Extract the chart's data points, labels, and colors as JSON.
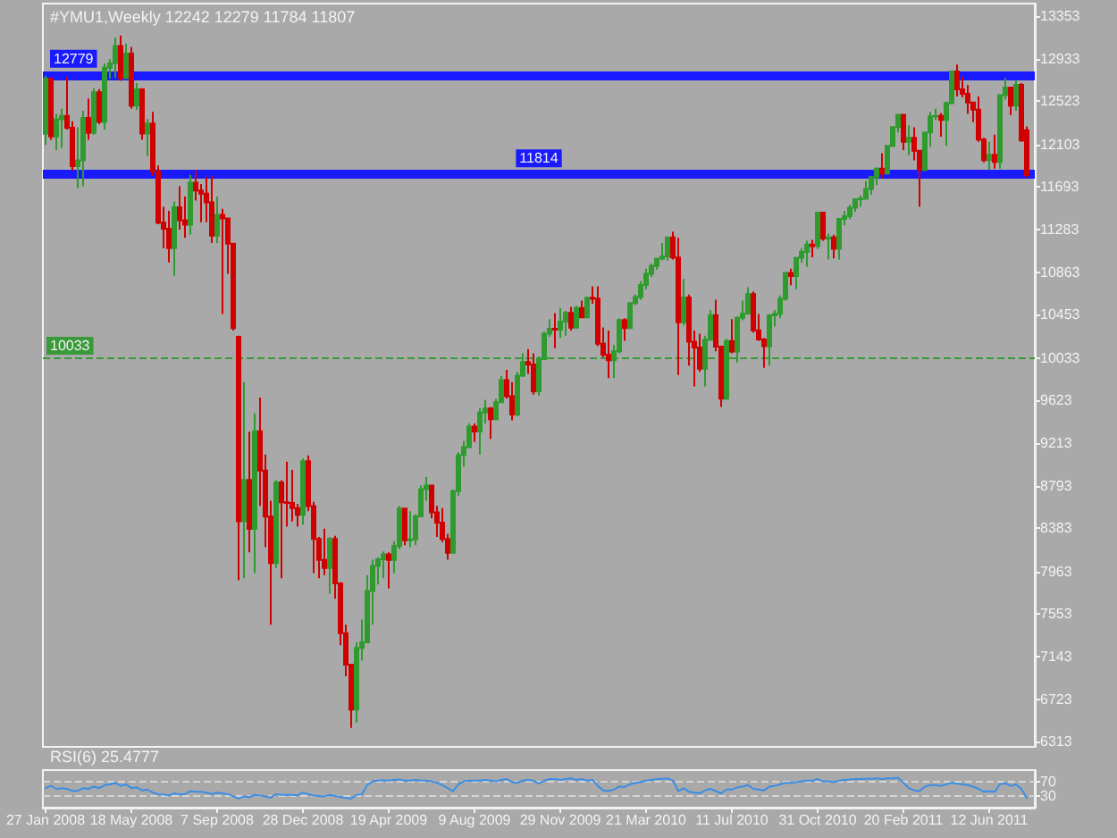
{
  "chart_data": [
    {
      "type": "candlestick",
      "title": "#YMU1,Weekly 12242 12279 11784 11807",
      "categories": [
        "27 Jan 2008",
        null,
        null,
        null,
        null,
        null,
        null,
        null,
        null,
        null,
        null,
        null,
        null,
        null,
        null,
        null,
        "18 May 2008",
        null,
        null,
        null,
        null,
        null,
        null,
        null,
        null,
        null,
        null,
        null,
        null,
        null,
        null,
        null,
        "7 Sep 2008",
        null,
        null,
        null,
        null,
        null,
        null,
        null,
        null,
        null,
        null,
        null,
        null,
        null,
        null,
        null,
        "28 Dec 2008",
        null,
        null,
        null,
        null,
        null,
        null,
        null,
        null,
        null,
        null,
        null,
        null,
        null,
        null,
        null,
        "19 Apr 2009",
        null,
        null,
        null,
        null,
        null,
        null,
        null,
        null,
        null,
        null,
        null,
        null,
        null,
        null,
        null,
        "9 Aug 2009",
        null,
        null,
        null,
        null,
        null,
        null,
        null,
        null,
        null,
        null,
        null,
        null,
        null,
        null,
        null,
        "29 Nov 2009",
        null,
        null,
        null,
        null,
        null,
        null,
        null,
        null,
        null,
        null,
        null,
        null,
        null,
        null,
        null,
        "21 Mar 2010",
        null,
        null,
        null,
        null,
        null,
        null,
        null,
        null,
        null,
        null,
        null,
        null,
        null,
        null,
        null,
        "11 Jul 2010",
        null,
        null,
        null,
        null,
        null,
        null,
        null,
        null,
        null,
        null,
        null,
        null,
        null,
        null,
        null,
        "31 Oct 2010",
        null,
        null,
        null,
        null,
        null,
        null,
        null,
        null,
        null,
        null,
        null,
        null,
        null,
        null,
        null,
        "20 Feb 2011",
        null,
        null,
        null,
        null,
        null,
        null,
        null,
        null,
        null,
        null,
        null,
        null,
        null,
        null,
        null,
        "12 Jun 2011",
        null,
        null,
        null,
        null,
        null,
        null,
        null
      ],
      "ohlc": [
        [
          12207,
          12770,
          12100,
          12743
        ],
        [
          12743,
          12750,
          12150,
          12182
        ],
        [
          12182,
          12400,
          12050,
          12348
        ],
        [
          12348,
          12450,
          12070,
          12381
        ],
        [
          12381,
          12760,
          12250,
          12266
        ],
        [
          12266,
          12330,
          11850,
          11894
        ],
        [
          11894,
          12270,
          11680,
          11951
        ],
        [
          11951,
          12430,
          11700,
          12361
        ],
        [
          12361,
          12550,
          12150,
          12216
        ],
        [
          12216,
          12650,
          12200,
          12610
        ],
        [
          12610,
          12640,
          12300,
          12325
        ],
        [
          12325,
          12890,
          12250,
          12849
        ],
        [
          12849,
          12930,
          12740,
          12891
        ],
        [
          12891,
          13140,
          12750,
          13058
        ],
        [
          13058,
          13160,
          12720,
          12746
        ],
        [
          12746,
          13080,
          12740,
          12986
        ],
        [
          12986,
          13050,
          12450,
          12480
        ],
        [
          12480,
          12700,
          12440,
          12638
        ],
        [
          12638,
          12650,
          12150,
          12209
        ],
        [
          12209,
          12350,
          11990,
          12307
        ],
        [
          12307,
          12420,
          11800,
          11843
        ],
        [
          11843,
          11900,
          11330,
          11347
        ],
        [
          11347,
          11500,
          11100,
          11288
        ],
        [
          11288,
          11460,
          10960,
          11100
        ],
        [
          11100,
          11550,
          10830,
          11496
        ],
        [
          11496,
          11700,
          11280,
          11370
        ],
        [
          11370,
          11600,
          11200,
          11326
        ],
        [
          11326,
          11810,
          11230,
          11734
        ],
        [
          11734,
          11860,
          11560,
          11659
        ],
        [
          11659,
          11720,
          11350,
          11628
        ],
        [
          11628,
          11790,
          11350,
          11543
        ],
        [
          11543,
          11800,
          11150,
          11220
        ],
        [
          11220,
          11600,
          11150,
          11421
        ],
        [
          11421,
          11480,
          10460,
          11388
        ],
        [
          11388,
          11390,
          10850,
          11143
        ],
        [
          11143,
          11150,
          10300,
          10325
        ],
        [
          10240,
          10250,
          7880,
          8451
        ],
        [
          8451,
          9800,
          7900,
          8852
        ],
        [
          8852,
          9320,
          8150,
          8378
        ],
        [
          8378,
          9500,
          7950,
          9325
        ],
        [
          9325,
          9650,
          8600,
          8943
        ],
        [
          8943,
          9100,
          8200,
          8497
        ],
        [
          8497,
          8650,
          7450,
          8046
        ],
        [
          8046,
          8850,
          8000,
          8829
        ],
        [
          8829,
          8850,
          7900,
          8635
        ],
        [
          8635,
          9030,
          8400,
          8629
        ],
        [
          8629,
          8950,
          8450,
          8579
        ],
        [
          8579,
          8620,
          8400,
          8515
        ],
        [
          8515,
          9060,
          8420,
          9034
        ],
        [
          9034,
          9090,
          8550,
          8599
        ],
        [
          8599,
          8640,
          7950,
          8281
        ],
        [
          8281,
          8300,
          7900,
          8077
        ],
        [
          8077,
          8380,
          7930,
          8000
        ],
        [
          8000,
          8300,
          7750,
          8280
        ],
        [
          8280,
          8310,
          7700,
          7850
        ],
        [
          7850,
          7860,
          7250,
          7366
        ],
        [
          7366,
          7450,
          6950,
          7062
        ],
        [
          7062,
          7070,
          6450,
          6627
        ],
        [
          6627,
          7280,
          6500,
          7224
        ],
        [
          7224,
          7500,
          7100,
          7279
        ],
        [
          7279,
          7930,
          7270,
          7776
        ],
        [
          7776,
          8080,
          7450,
          8018
        ],
        [
          8018,
          8100,
          7840,
          8083
        ],
        [
          8083,
          8160,
          7900,
          8131
        ],
        [
          8131,
          8150,
          7800,
          8076
        ],
        [
          8076,
          8260,
          7950,
          8212
        ],
        [
          8212,
          8600,
          8180,
          8575
        ],
        [
          8575,
          8580,
          8220,
          8268
        ],
        [
          8268,
          8550,
          8200,
          8277
        ],
        [
          8277,
          8520,
          8220,
          8500
        ],
        [
          8500,
          8800,
          8490,
          8763
        ],
        [
          8763,
          8880,
          8650,
          8799
        ],
        [
          8799,
          8800,
          8480,
          8539
        ],
        [
          8539,
          8600,
          8300,
          8438
        ],
        [
          8438,
          8580,
          8250,
          8280
        ],
        [
          8280,
          8330,
          8080,
          8146
        ],
        [
          8146,
          8760,
          8140,
          8743
        ],
        [
          8743,
          9120,
          8700,
          9093
        ],
        [
          9093,
          9230,
          8980,
          9171
        ],
        [
          9171,
          9400,
          9160,
          9370
        ],
        [
          9370,
          9400,
          9220,
          9321
        ],
        [
          9321,
          9550,
          9100,
          9505
        ],
        [
          9505,
          9630,
          9400,
          9544
        ],
        [
          9544,
          9560,
          9250,
          9441
        ],
        [
          9441,
          9640,
          9430,
          9605
        ],
        [
          9605,
          9860,
          9600,
          9820
        ],
        [
          9820,
          9920,
          9640,
          9665
        ],
        [
          9665,
          9800,
          9430,
          9487
        ],
        [
          9487,
          9900,
          9470,
          9864
        ],
        [
          9864,
          10080,
          9850,
          9995
        ],
        [
          9995,
          10120,
          9880,
          9972
        ],
        [
          9972,
          10080,
          9680,
          9712
        ],
        [
          9712,
          10050,
          9670,
          10023
        ],
        [
          10023,
          10290,
          10020,
          10270
        ],
        [
          10270,
          10410,
          10240,
          10318
        ],
        [
          10318,
          10470,
          10130,
          10309
        ],
        [
          10309,
          10520,
          10230,
          10388
        ],
        [
          10388,
          10490,
          10250,
          10471
        ],
        [
          10471,
          10530,
          10300,
          10329
        ],
        [
          10329,
          10540,
          10320,
          10520
        ],
        [
          10520,
          10590,
          10420,
          10428
        ],
        [
          10428,
          10630,
          10420,
          10618
        ],
        [
          10618,
          10730,
          10560,
          10610
        ],
        [
          10610,
          10730,
          10150,
          10172
        ],
        [
          10172,
          10330,
          10040,
          10067
        ],
        [
          10067,
          10300,
          9840,
          10012
        ],
        [
          10012,
          10160,
          9840,
          10099
        ],
        [
          10099,
          10420,
          10080,
          10402
        ],
        [
          10402,
          10420,
          10200,
          10325
        ],
        [
          10325,
          10570,
          10320,
          10566
        ],
        [
          10566,
          10650,
          10550,
          10625
        ],
        [
          10625,
          10780,
          10600,
          10742
        ],
        [
          10742,
          10900,
          10700,
          10850
        ],
        [
          10850,
          10950,
          10820,
          10927
        ],
        [
          10927,
          11000,
          10890,
          10997
        ],
        [
          10997,
          11150,
          10980,
          11019
        ],
        [
          11019,
          11210,
          10980,
          11204
        ],
        [
          11204,
          11260,
          10990,
          11009
        ],
        [
          11009,
          11200,
          9870,
          10380
        ],
        [
          10380,
          10800,
          10350,
          10620
        ],
        [
          10620,
          10650,
          9960,
          10193
        ],
        [
          10193,
          10300,
          9760,
          10137
        ],
        [
          10137,
          10270,
          9900,
          9931
        ],
        [
          9931,
          10250,
          9760,
          10211
        ],
        [
          10211,
          10500,
          10200,
          10450
        ],
        [
          10450,
          10600,
          10100,
          10144
        ],
        [
          10144,
          10150,
          9560,
          9640
        ],
        [
          9640,
          10220,
          9630,
          10198
        ],
        [
          10198,
          10410,
          10080,
          10098
        ],
        [
          10098,
          10440,
          9990,
          10424
        ],
        [
          10424,
          10590,
          10400,
          10466
        ],
        [
          10466,
          10720,
          10460,
          10654
        ],
        [
          10654,
          10680,
          10280,
          10303
        ],
        [
          10303,
          10460,
          10200,
          10213
        ],
        [
          10213,
          10230,
          9940,
          10150
        ],
        [
          10150,
          10460,
          9960,
          10448
        ],
        [
          10448,
          10500,
          10340,
          10462
        ],
        [
          10462,
          10640,
          10420,
          10607
        ],
        [
          10607,
          10870,
          10590,
          10860
        ],
        [
          10860,
          10900,
          10740,
          10829
        ],
        [
          10829,
          11010,
          10700,
          11006
        ],
        [
          11006,
          11100,
          10960,
          11062
        ],
        [
          11062,
          11170,
          10920,
          11133
        ],
        [
          11133,
          11180,
          11010,
          11118
        ],
        [
          11118,
          11450,
          11090,
          11444
        ],
        [
          11444,
          11450,
          11170,
          11192
        ],
        [
          11192,
          11240,
          10990,
          11203
        ],
        [
          11203,
          11230,
          11000,
          11092
        ],
        [
          11092,
          11390,
          10990,
          11382
        ],
        [
          11382,
          11460,
          11320,
          11410
        ],
        [
          11410,
          11520,
          11380,
          11491
        ],
        [
          11491,
          11580,
          11450,
          11573
        ],
        [
          11573,
          11610,
          11500,
          11577
        ],
        [
          11577,
          11750,
          11570,
          11674
        ],
        [
          11674,
          11800,
          11620,
          11787
        ],
        [
          11787,
          11880,
          11710,
          11871
        ],
        [
          11871,
          12020,
          11780,
          11823
        ],
        [
          11823,
          12100,
          11820,
          12092
        ],
        [
          12092,
          12280,
          12080,
          12273
        ],
        [
          12273,
          12400,
          12220,
          12391
        ],
        [
          12391,
          12400,
          12050,
          12130
        ],
        [
          12130,
          12290,
          12000,
          12169
        ],
        [
          12169,
          12270,
          11950,
          12044
        ],
        [
          12044,
          12050,
          11500,
          11858
        ],
        [
          11858,
          12230,
          11850,
          12221
        ],
        [
          12221,
          12420,
          12080,
          12376
        ],
        [
          12376,
          12450,
          12340,
          12380
        ],
        [
          12380,
          12410,
          12180,
          12341
        ],
        [
          12341,
          12520,
          12090,
          12505
        ],
        [
          12505,
          12820,
          12500,
          12811
        ],
        [
          12811,
          12880,
          12570,
          12638
        ],
        [
          12638,
          12760,
          12560,
          12596
        ],
        [
          12596,
          12680,
          12400,
          12512
        ],
        [
          12512,
          12520,
          12320,
          12441
        ],
        [
          12441,
          12570,
          12130,
          12151
        ],
        [
          12151,
          12170,
          11930,
          11952
        ],
        [
          11952,
          12130,
          11860,
          12004
        ],
        [
          12004,
          12200,
          11870,
          11934
        ],
        [
          11934,
          12590,
          11870,
          12582
        ],
        [
          12582,
          12750,
          12540,
          12657
        ],
        [
          12657,
          12660,
          12390,
          12480
        ],
        [
          12480,
          12730,
          12430,
          12681
        ],
        [
          12681,
          12700,
          12130,
          12143
        ],
        [
          12242,
          12279,
          11784,
          11807
        ]
      ],
      "ylim": [
        6265,
        13470
      ],
      "yticks": [
        13353,
        12933,
        12523,
        12103,
        11693,
        11283,
        10863,
        10453,
        10033,
        9623,
        9213,
        8793,
        8383,
        7963,
        7553,
        7143,
        6723,
        6313
      ],
      "ref_lines": [
        {
          "axis": "y",
          "value": 12779,
          "label": "12779",
          "color": "#1a1aff"
        },
        {
          "axis": "y",
          "value": 11814,
          "label": "11814",
          "color": "#1a1aff"
        },
        {
          "axis": "y",
          "value": 10033,
          "label": "10033",
          "color": "#3a9a3a",
          "line_style": "dashed"
        }
      ]
    },
    {
      "type": "line",
      "title": "RSI(6) 25.4777",
      "categories": [
        null,
        null,
        null,
        null,
        null,
        null,
        null,
        null,
        null,
        null,
        null,
        null,
        null,
        null,
        null,
        null,
        null,
        null,
        null,
        null,
        null,
        null,
        null,
        null,
        null,
        null,
        null,
        null,
        null,
        null,
        null,
        null,
        null,
        null,
        null,
        null,
        null,
        null,
        null,
        null,
        null,
        null,
        null,
        null,
        null,
        null,
        null,
        null,
        null,
        null,
        null,
        null,
        null,
        null,
        null,
        null,
        null,
        null,
        null,
        null,
        null,
        null,
        null,
        null,
        null,
        null,
        null,
        null,
        null,
        null,
        null,
        null,
        null,
        null,
        null,
        null,
        null,
        null,
        null,
        null,
        null,
        null,
        null,
        null,
        null,
        null,
        null,
        null,
        null,
        null,
        null,
        null,
        null,
        null,
        null,
        null,
        null,
        null,
        null,
        null,
        null,
        null,
        null,
        null,
        null,
        null,
        null,
        null,
        null,
        null,
        null,
        null,
        null,
        null,
        null,
        null,
        null,
        null,
        null,
        null,
        null,
        null,
        null,
        null,
        null,
        null,
        null,
        null,
        null,
        null,
        null,
        null,
        null,
        null,
        null,
        null,
        null,
        null,
        null,
        null,
        null,
        null,
        null,
        null,
        null,
        null,
        null,
        null,
        null,
        null,
        null,
        null,
        null,
        null,
        null,
        null,
        null,
        null,
        null,
        null,
        null,
        null,
        null,
        null,
        null,
        null,
        null,
        null,
        null,
        null,
        null,
        null,
        null,
        null,
        null,
        null,
        null,
        null,
        null,
        null,
        null,
        null,
        null,
        null
      ],
      "values": [
        52,
        58,
        50,
        52,
        50,
        44,
        45,
        52,
        50,
        56,
        52,
        60,
        62,
        66,
        58,
        62,
        52,
        54,
        46,
        48,
        40,
        36,
        35,
        33,
        38,
        36,
        36,
        44,
        42,
        42,
        40,
        36,
        40,
        38,
        36,
        30,
        24,
        30,
        28,
        34,
        32,
        30,
        27,
        36,
        34,
        34,
        34,
        33,
        40,
        36,
        32,
        31,
        30,
        34,
        31,
        28,
        26,
        24,
        34,
        36,
        60,
        70,
        72,
        73,
        72,
        74,
        75,
        72,
        72,
        74,
        72,
        72,
        70,
        66,
        60,
        52,
        44,
        62,
        70,
        72,
        72,
        72,
        74,
        72,
        70,
        74,
        76,
        68,
        66,
        72,
        74,
        72,
        64,
        72,
        76,
        76,
        74,
        76,
        78,
        74,
        76,
        72,
        74,
        58,
        46,
        44,
        48,
        56,
        55,
        62,
        66,
        68,
        72,
        74,
        76,
        77,
        78,
        72,
        44,
        52,
        42,
        40,
        38,
        46,
        50,
        44,
        38,
        48,
        48,
        54,
        56,
        60,
        50,
        48,
        46,
        56,
        58,
        62,
        66,
        66,
        68,
        70,
        72,
        72,
        76,
        70,
        70,
        68,
        72,
        74,
        75,
        76,
        76,
        77,
        77,
        78,
        76,
        78,
        78,
        79,
        66,
        52,
        46,
        44,
        56,
        60,
        60,
        58,
        62,
        66,
        64,
        62,
        60,
        56,
        50,
        42,
        44,
        42,
        62,
        65,
        58,
        62,
        50,
        25
      ],
      "color": "#3a8ee6",
      "ylim": [
        0,
        100
      ],
      "yticks": [
        30,
        70
      ],
      "ref_lines": [
        {
          "axis": "y",
          "value": 70,
          "color": "#d4d4d4",
          "line_style": "dashed"
        },
        {
          "axis": "y",
          "value": 30,
          "color": "#d4d4d4",
          "line_style": "dashed"
        }
      ]
    }
  ]
}
